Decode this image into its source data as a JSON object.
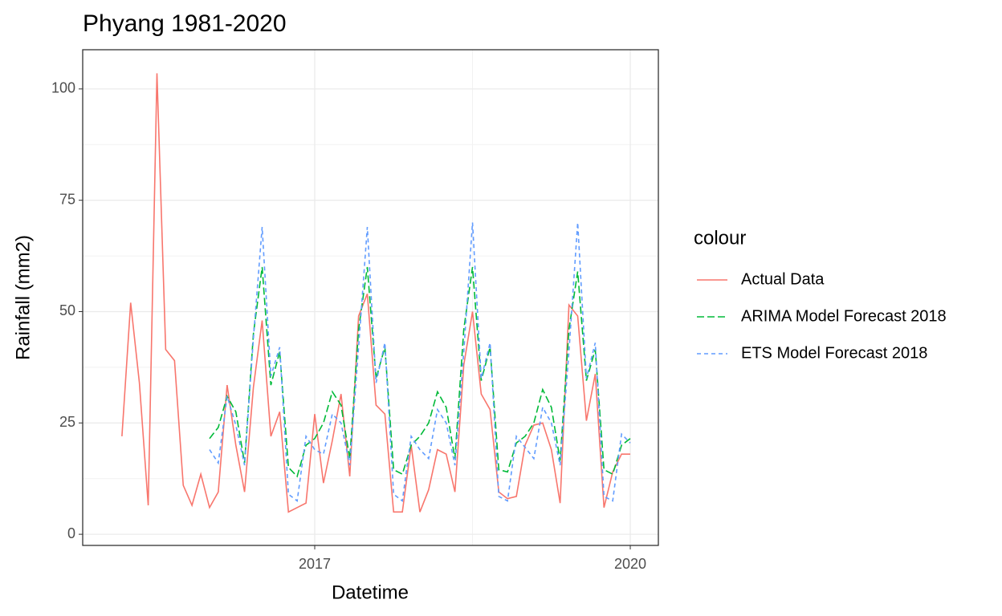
{
  "chart_data": {
    "type": "line",
    "title": "Phyang 1981-2020",
    "x_label": "Datetime",
    "y_label": "Rainfall (mm2)",
    "legend_title": "colour",
    "x": [
      2015.167,
      2015.25,
      2015.333,
      2015.417,
      2015.5,
      2015.583,
      2015.667,
      2015.75,
      2015.833,
      2015.917,
      2016,
      2016.083,
      2016.167,
      2016.25,
      2016.333,
      2016.417,
      2016.5,
      2016.583,
      2016.667,
      2016.75,
      2016.833,
      2016.917,
      2017,
      2017.083,
      2017.167,
      2017.25,
      2017.333,
      2017.417,
      2017.5,
      2017.583,
      2017.667,
      2017.75,
      2017.833,
      2017.917,
      2018,
      2018.083,
      2018.167,
      2018.25,
      2018.333,
      2018.417,
      2018.5,
      2018.583,
      2018.667,
      2018.75,
      2018.833,
      2018.917,
      2019,
      2019.083,
      2019.167,
      2019.25,
      2019.333,
      2019.417,
      2019.5,
      2019.583,
      2019.667,
      2019.75,
      2019.833,
      2019.917,
      2020
    ],
    "series": [
      {
        "name": "Actual Data",
        "color": "#F8766D",
        "linetype": "solid",
        "values": [
          22,
          52,
          34,
          6.5,
          103.5,
          41.5,
          39,
          11,
          6.5,
          13.5,
          6,
          9.5,
          33.5,
          20,
          9.5,
          33,
          48,
          22,
          27.5,
          5,
          6,
          7,
          27,
          11.5,
          21,
          31.5,
          13,
          49,
          54,
          29,
          27,
          5,
          5,
          20,
          5,
          10,
          19,
          18,
          9.5,
          38,
          50,
          31.5,
          28,
          9.5,
          8,
          8.5,
          20,
          24.5,
          25,
          19,
          7,
          51.5,
          49,
          25.5,
          36,
          6,
          14,
          18,
          18
        ]
      },
      {
        "name": "ARIMA Model Forecast 2018",
        "color": "#00BA38",
        "linetype": "longdash",
        "values": [
          null,
          null,
          null,
          null,
          null,
          null,
          null,
          null,
          null,
          null,
          21.5,
          24,
          31,
          27.5,
          16,
          45,
          60,
          33.5,
          41,
          15,
          13,
          20,
          21.5,
          25,
          32,
          29,
          17,
          46,
          60,
          35,
          42,
          14.5,
          13.5,
          20,
          22,
          25,
          32,
          28.5,
          17,
          46,
          60,
          34.5,
          42,
          14.5,
          14,
          20.5,
          22,
          25,
          32.5,
          28.5,
          16.5,
          46,
          59,
          34.5,
          41.5,
          14.5,
          13.5,
          20,
          21.5
        ]
      },
      {
        "name": "ETS Model Forecast 2018",
        "color": "#619CFF",
        "linetype": "dashed",
        "values": [
          null,
          null,
          null,
          null,
          null,
          null,
          null,
          null,
          null,
          null,
          19,
          16,
          31,
          24.5,
          15.5,
          44,
          69,
          35.5,
          42,
          9,
          7.5,
          22,
          19,
          18,
          27,
          25,
          15.5,
          42,
          69,
          34,
          43,
          9,
          7.5,
          22,
          19,
          17,
          28,
          25,
          15.5,
          41,
          70,
          35,
          43,
          8.5,
          7.5,
          22,
          19.5,
          17,
          28.5,
          25,
          15.5,
          41,
          70,
          35,
          43,
          8.5,
          7.5,
          22.5,
          20.5
        ]
      }
    ],
    "xlim": [
      2014.794,
      2020.267
    ],
    "xticks": [
      2017,
      2020
    ],
    "ylim": [
      -2.5,
      108.8
    ],
    "yticks": [
      0,
      25,
      50,
      75,
      100
    ],
    "grid": true,
    "legend": "right"
  }
}
